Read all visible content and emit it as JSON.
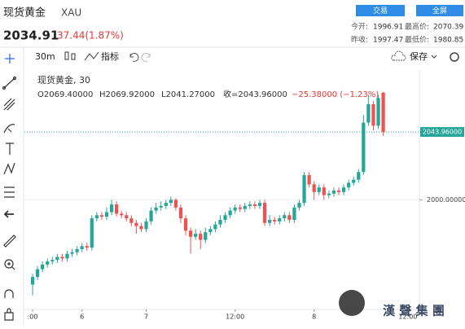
{
  "header": {
    "title": "现货黄金",
    "symbol": "XAU",
    "price": "2034.91",
    "change": "37.44(1.87%)",
    "buttons": [
      "交易",
      "全屏"
    ],
    "stats": [
      {
        "label": "今开:",
        "value": "1996.91"
      },
      {
        "label": "最高价:",
        "value": "2070.39"
      },
      {
        "label": "昨收:",
        "value": "1997.47"
      },
      {
        "label": "最低价:",
        "value": "1980.85"
      }
    ]
  },
  "toolbar": {
    "interval": "30m",
    "indicators": "指标",
    "save": "保存"
  },
  "legend": {
    "name": "现货黄金, 30",
    "open": "O2069.40000",
    "high": "H2069.92000",
    "low": "L2041.27000",
    "close": "收=2043.96000",
    "change": "−25.38000 (−1.23%)"
  },
  "watermark": "漢 聲 集 團",
  "chart_data": {
    "type": "candlestick",
    "up_color": "#26a69a",
    "down_color": "#ef5350",
    "ohlc": [
      [
        1945,
        1952,
        1938,
        1950
      ],
      [
        1950,
        1957,
        1948,
        1955
      ],
      [
        1955,
        1960,
        1953,
        1958
      ],
      [
        1958,
        1962,
        1956,
        1960
      ],
      [
        1960,
        1963,
        1958,
        1961
      ],
      [
        1961,
        1965,
        1959,
        1963
      ],
      [
        1963,
        1965,
        1960,
        1962
      ],
      [
        1962,
        1967,
        1960,
        1965
      ],
      [
        1965,
        1968,
        1963,
        1966
      ],
      [
        1966,
        1970,
        1964,
        1968
      ],
      [
        1968,
        1972,
        1966,
        1970
      ],
      [
        1970,
        1972,
        1967,
        1969
      ],
      [
        1969,
        1990,
        1967,
        1988
      ],
      [
        1988,
        1992,
        1986,
        1990
      ],
      [
        1990,
        1992,
        1987,
        1989
      ],
      [
        1989,
        1995,
        1987,
        1992
      ],
      [
        1992,
        2000,
        1990,
        1997
      ],
      [
        1997,
        1999,
        1989,
        1991
      ],
      [
        1991,
        1993,
        1988,
        1990
      ],
      [
        1990,
        1992,
        1986,
        1988
      ],
      [
        1988,
        1990,
        1983,
        1985
      ],
      [
        1985,
        1987,
        1978,
        1983
      ],
      [
        1983,
        1985,
        1979,
        1981
      ],
      [
        1981,
        1988,
        1979,
        1986
      ],
      [
        1986,
        1995,
        1984,
        1993
      ],
      [
        1993,
        1998,
        1991,
        1995
      ],
      [
        1995,
        1999,
        1993,
        1996
      ],
      [
        1996,
        2000,
        1994,
        1998
      ],
      [
        1998,
        2002,
        1996,
        2000
      ],
      [
        2000,
        2001,
        1993,
        1995
      ],
      [
        1995,
        1997,
        1985,
        1988
      ],
      [
        1988,
        1990,
        1977,
        1980
      ],
      [
        1980,
        1982,
        1965,
        1976
      ],
      [
        1976,
        1981,
        1974,
        1978
      ],
      [
        1978,
        1980,
        1968,
        1974
      ],
      [
        1974,
        1982,
        1972,
        1979
      ],
      [
        1979,
        1983,
        1977,
        1981
      ],
      [
        1981,
        1986,
        1979,
        1984
      ],
      [
        1984,
        1990,
        1982,
        1987
      ],
      [
        1987,
        1992,
        1985,
        1990
      ],
      [
        1990,
        1995,
        1988,
        1993
      ],
      [
        1993,
        1997,
        1991,
        1995
      ],
      [
        1995,
        1997,
        1992,
        1994
      ],
      [
        1994,
        1998,
        1992,
        1996
      ],
      [
        1996,
        1999,
        1994,
        1997
      ],
      [
        1997,
        1999,
        1994,
        1996
      ],
      [
        1996,
        2000,
        1994,
        1998
      ],
      [
        1998,
        2000,
        1983,
        1985
      ],
      [
        1985,
        1990,
        1983,
        1987
      ],
      [
        1987,
        1989,
        1984,
        1986
      ],
      [
        1986,
        1990,
        1984,
        1988
      ],
      [
        1988,
        1992,
        1986,
        1990
      ],
      [
        1990,
        1992,
        1985,
        1987
      ],
      [
        1987,
        1997,
        1985,
        1995
      ],
      [
        1995,
        2000,
        1993,
        1998
      ],
      [
        1998,
        2018,
        1996,
        2016
      ],
      [
        2016,
        2018,
        2008,
        2010
      ],
      [
        2010,
        2012,
        2000,
        2005
      ],
      [
        2005,
        2010,
        2003,
        2008
      ],
      [
        2008,
        2010,
        2000,
        2003
      ],
      [
        2003,
        2006,
        2001,
        2004
      ],
      [
        2004,
        2008,
        2002,
        2006
      ],
      [
        2006,
        2008,
        2003,
        2005
      ],
      [
        2005,
        2010,
        2003,
        2008
      ],
      [
        2008,
        2013,
        2006,
        2011
      ],
      [
        2011,
        2015,
        2009,
        2013
      ],
      [
        2013,
        2020,
        2011,
        2018
      ],
      [
        2018,
        2055,
        2016,
        2050
      ],
      [
        2050,
        2068,
        2048,
        2062
      ],
      [
        2062,
        2064,
        2045,
        2048
      ],
      [
        2048,
        2068,
        2046,
        2066
      ],
      [
        2069.4,
        2069.92,
        2041.27,
        2043.96
      ]
    ],
    "xlim": [
      -0.5,
      77.5
    ],
    "xticks": [
      {
        "value": 0,
        "label": ":00"
      },
      {
        "value": 10,
        "label": "6"
      },
      {
        "value": 23,
        "label": "7"
      },
      {
        "value": 41,
        "label": "12:00"
      },
      {
        "value": 57,
        "label": "8"
      },
      {
        "value": 76,
        "label": "12:00"
      }
    ],
    "ylim": [
      1921,
      2082
    ],
    "yticks": [
      {
        "value": 2000,
        "label": "2000.00000"
      }
    ],
    "last_price": {
      "value": 2043.96,
      "label": "2043.96000"
    }
  }
}
